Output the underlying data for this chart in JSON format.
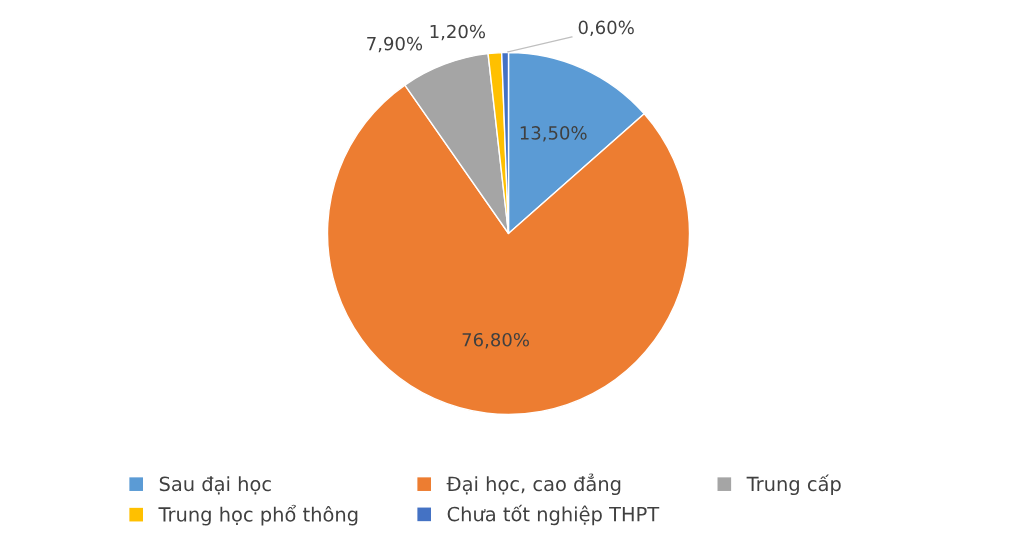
{
  "chart_data": {
    "type": "pie",
    "categories": [
      "Sau đại học",
      "Đại học, cao đẳng",
      "Trung cấp",
      "Trung học phổ thông",
      "Chưa tốt nghiệp THPT"
    ],
    "values": [
      13.5,
      76.8,
      7.9,
      1.2,
      0.6
    ],
    "colors": [
      "#5b9bd5",
      "#ed7d31",
      "#a5a5a5",
      "#ffc000",
      "#4472c4"
    ],
    "value_labels": [
      "13,50%",
      "76,80%",
      "7,90%",
      "1,20%",
      "0,60%"
    ],
    "legend": "bottom"
  }
}
